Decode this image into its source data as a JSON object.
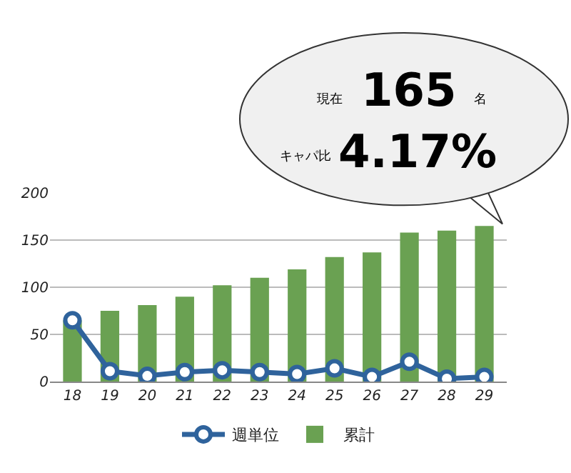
{
  "chart_data": {
    "type": "bar",
    "categories": [
      "18",
      "19",
      "20",
      "21",
      "22",
      "23",
      "24",
      "25",
      "26",
      "27",
      "28",
      "29"
    ],
    "series": [
      {
        "name": "週単位",
        "type": "line",
        "color": "#2f639c",
        "marker": "circle",
        "values": [
          65,
          11,
          6,
          10,
          12,
          10,
          8,
          14,
          5,
          21,
          3,
          5
        ]
      },
      {
        "name": "累計",
        "color": "#6aa152",
        "values": [
          65,
          75,
          81,
          90,
          102,
          110,
          119,
          132,
          137,
          158,
          160,
          165
        ]
      }
    ],
    "ylim": [
      0,
      200
    ],
    "yticks": [
      0,
      50,
      100,
      150,
      200
    ],
    "grid": "y",
    "legend": "bottom",
    "annotations": [
      "現在",
      "165",
      "名",
      "キャパ比",
      "4.17%"
    ]
  }
}
